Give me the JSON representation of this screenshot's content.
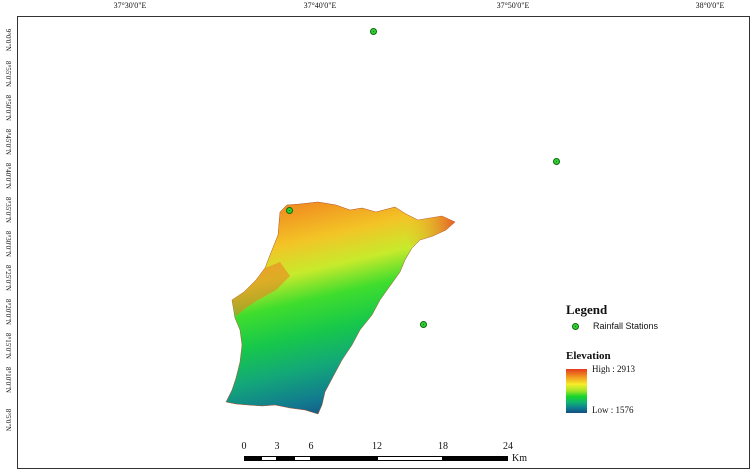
{
  "graticule": {
    "top": [
      "37°30'0\"E",
      "37°40'0\"E",
      "37°50'0\"E",
      "38°0'0\"E"
    ],
    "left": [
      "9°0'0\"N",
      "8°55'0\"N",
      "8°50'0\"N",
      "8°45'0\"N",
      "8°40'0\"N",
      "8°35'0\"N",
      "8°30'0\"N",
      "8°25'0\"N",
      "8°20'0\"N",
      "8°15'0\"N",
      "8°10'0\"N",
      "8°5'0\"N"
    ]
  },
  "legend": {
    "title": "Legend",
    "station_label": "Rainfall Stations",
    "elevation_title": "Elevation",
    "high_label": "High : 2913",
    "low_label": "Low : 1576",
    "ramp_colors": [
      "#e33a1d",
      "#f2a420",
      "#f6ee2a",
      "#9ee529",
      "#19d42b",
      "#10b86c",
      "#0f7f90",
      "#124f80"
    ]
  },
  "scale_bar": {
    "ticks": [
      "0",
      "3",
      "6",
      "12",
      "18",
      "24"
    ],
    "unit": "Km"
  },
  "colors": {
    "station_fill": "#2fd12f",
    "frame": "#333333"
  },
  "stations_count": 4
}
